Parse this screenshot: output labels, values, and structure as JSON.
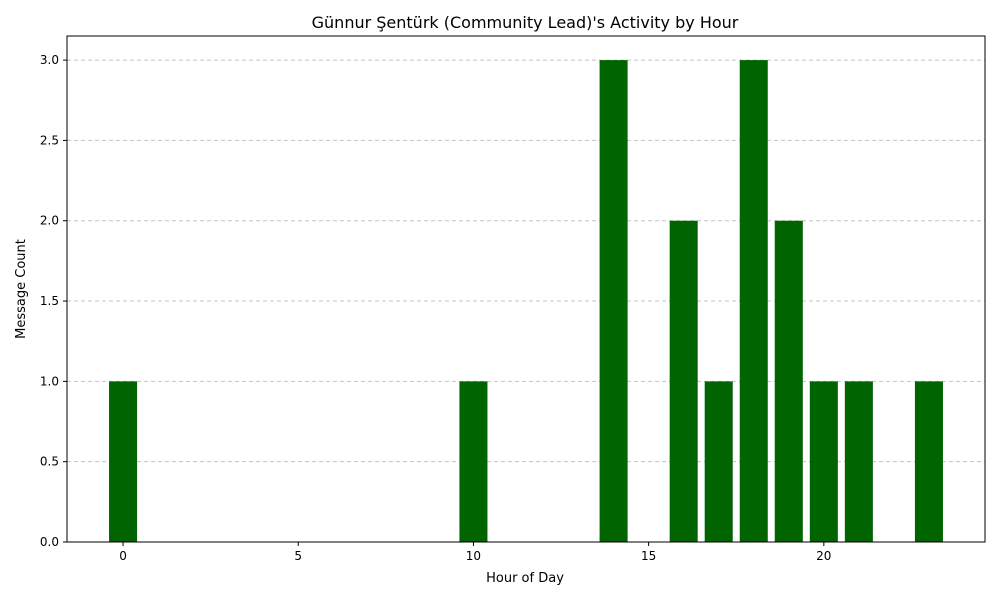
{
  "chart_data": {
    "type": "bar",
    "title": "Günnur Şentürk (Community Lead)'s Activity by Hour",
    "xlabel": "Hour of Day",
    "ylabel": "Message Count",
    "x": [
      0,
      10,
      14,
      16,
      17,
      18,
      19,
      20,
      21,
      23
    ],
    "values": [
      1,
      1,
      3,
      2,
      1,
      3,
      2,
      1,
      1,
      1
    ],
    "bar_color": "#006400",
    "xlim": [
      -1.6,
      24.6
    ],
    "ylim": [
      0,
      3.15
    ],
    "xticks": [
      0,
      5,
      10,
      15,
      20
    ],
    "xtick_labels": [
      "0",
      "5",
      "10",
      "15",
      "20"
    ],
    "yticks": [
      0,
      0.5,
      1,
      1.5,
      2,
      2.5,
      3
    ],
    "ytick_labels": [
      "0.0",
      "0.5",
      "1.0",
      "1.5",
      "2.0",
      "2.5",
      "3.0"
    ],
    "grid": "y-dashed",
    "bar_width": 0.8
  }
}
